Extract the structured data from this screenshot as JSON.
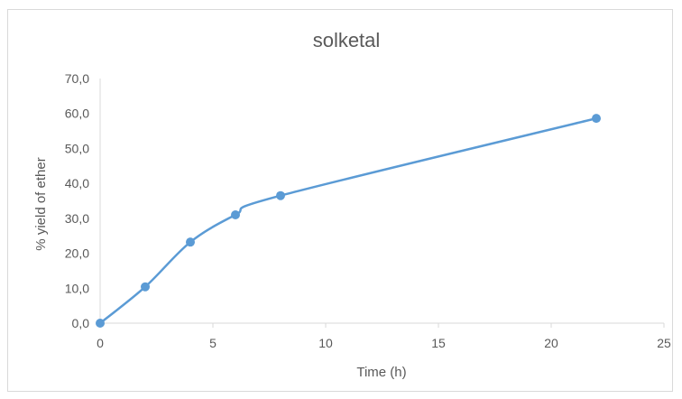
{
  "chart_data": {
    "type": "line",
    "title": "solketal",
    "xlabel": "Time (h)",
    "ylabel": "% yield of ether",
    "xlim": [
      0,
      25
    ],
    "ylim": [
      0,
      70
    ],
    "xticks": [
      "0",
      "5",
      "10",
      "15",
      "20",
      "25"
    ],
    "yticks": [
      "0,0",
      "10,0",
      "20,0",
      "30,0",
      "40,0",
      "50,0",
      "60,0",
      "70,0"
    ],
    "grid": false,
    "smooth": true,
    "series": [
      {
        "color": "#5b9bd5",
        "points": [
          {
            "x": 0,
            "y": 0.0
          },
          {
            "x": 2,
            "y": 10.4
          },
          {
            "x": 4,
            "y": 23.2
          },
          {
            "x": 6,
            "y": 31.0
          },
          {
            "x": 8,
            "y": 36.5
          },
          {
            "x": 22,
            "y": 58.6
          }
        ]
      }
    ]
  }
}
